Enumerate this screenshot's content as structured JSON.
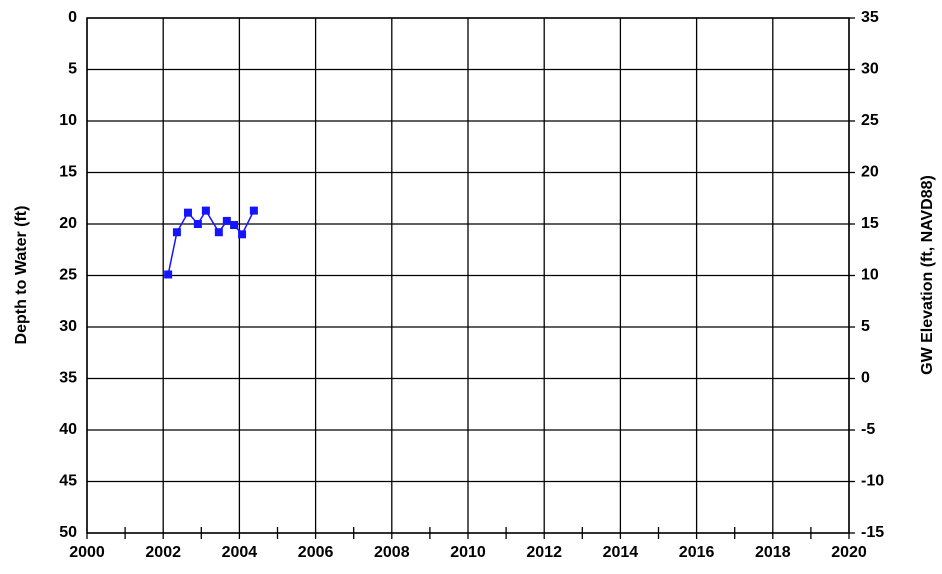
{
  "chart_data": {
    "type": "line",
    "x": [
      2002.13,
      2002.36,
      2002.65,
      2002.91,
      2003.12,
      2003.46,
      2003.67,
      2003.86,
      2004.07,
      2004.38
    ],
    "series": [
      {
        "color": "#1414ff",
        "values": [
          24.9,
          20.8,
          18.9,
          20.0,
          18.7,
          20.8,
          19.7,
          20.1,
          21.0,
          18.7
        ]
      }
    ],
    "xlim": [
      2000,
      2020
    ],
    "xticks": [
      2000,
      2002,
      2004,
      2006,
      2008,
      2010,
      2012,
      2014,
      2016,
      2018,
      2020
    ],
    "ylim": [
      0,
      50
    ],
    "y_inverted": true,
    "yticks": [
      0,
      5,
      10,
      15,
      20,
      25,
      30,
      35,
      40,
      45,
      50
    ],
    "y2lim": [
      -15,
      35
    ],
    "y2ticks": [
      -15,
      -10,
      -5,
      0,
      5,
      10,
      15,
      20,
      25,
      30,
      35
    ],
    "ylabel": "Depth to Water (ft)",
    "y2label": "GW Elevation (ft, NAVD88)",
    "grid": true
  }
}
